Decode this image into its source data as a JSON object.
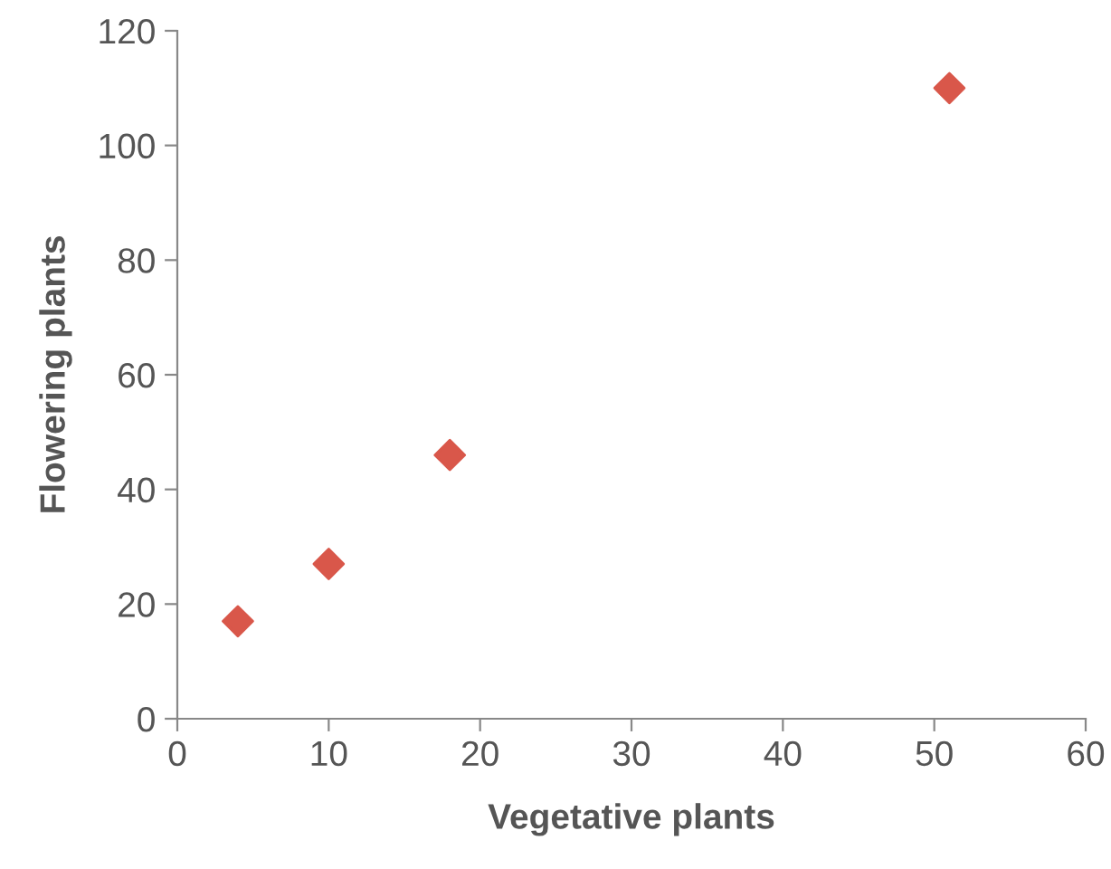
{
  "chart_data": {
    "type": "scatter",
    "xlabel": "Vegetative plants",
    "ylabel": "Flowering plants",
    "x": [
      4,
      10,
      18,
      51
    ],
    "series": [
      {
        "color": "#d9574a",
        "values": [
          17,
          27,
          46,
          110
        ]
      }
    ],
    "xlim": [
      0,
      60
    ],
    "xticks": [
      0,
      10,
      20,
      30,
      40,
      50,
      60
    ],
    "ylim": [
      0,
      120
    ],
    "yticks": [
      0,
      20,
      40,
      60,
      80,
      100,
      120
    ],
    "marker": "diamond",
    "grid": false
  }
}
